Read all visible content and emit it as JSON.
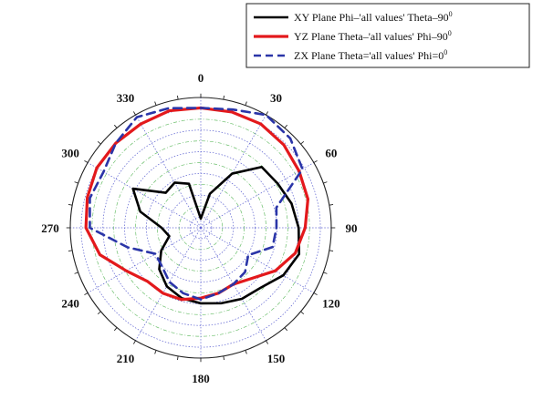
{
  "chart_data": {
    "type": "line",
    "subtype": "polar",
    "angular_ticks": [
      "0",
      "30",
      "60",
      "90",
      "120",
      "150",
      "180",
      "210",
      "240",
      "270",
      "300",
      "330"
    ],
    "angle_direction": "clockwise",
    "zero_angle_position": "top",
    "radial_range": [
      0,
      1
    ],
    "grid": true,
    "legend_position": "top-right",
    "theta": [
      0,
      15,
      30,
      45,
      60,
      75,
      90,
      105,
      120,
      135,
      150,
      165,
      180,
      195,
      210,
      225,
      240,
      255,
      270,
      285,
      300,
      315,
      330,
      345
    ],
    "series": [
      {
        "name": "XY Plane Phi–'all values'  Theta–90",
        "name_sup": "0",
        "color": "#000000",
        "dash": "solid",
        "values": [
          0.07,
          0.27,
          0.48,
          0.66,
          0.68,
          0.72,
          0.75,
          0.78,
          0.73,
          0.65,
          0.63,
          0.6,
          0.58,
          0.56,
          0.52,
          0.45,
          0.35,
          0.25,
          0.3,
          0.48,
          0.6,
          0.38,
          0.4,
          0.35
        ]
      },
      {
        "name": "YZ Plane Theta–'all values'  Phi–90",
        "name_sup": "0",
        "color": "#e3191c",
        "dash": "solid",
        "values": [
          0.92,
          0.92,
          0.92,
          0.9,
          0.87,
          0.85,
          0.8,
          0.75,
          0.66,
          0.55,
          0.5,
          0.52,
          0.54,
          0.57,
          0.58,
          0.58,
          0.66,
          0.8,
          0.88,
          0.9,
          0.92,
          0.92,
          0.92,
          0.93
        ]
      },
      {
        "name": "ZX Plane Theta='all values'  Phi=0",
        "name_sup": "0",
        "color": "#2a35a8",
        "dash": "dashed",
        "values": [
          0.92,
          0.94,
          1.0,
          0.97,
          0.9,
          0.6,
          0.58,
          0.57,
          0.42,
          0.48,
          0.5,
          0.52,
          0.55,
          0.52,
          0.48,
          0.42,
          0.4,
          0.58,
          0.85,
          0.88,
          0.86,
          0.92,
          0.98,
          0.95
        ]
      }
    ]
  }
}
